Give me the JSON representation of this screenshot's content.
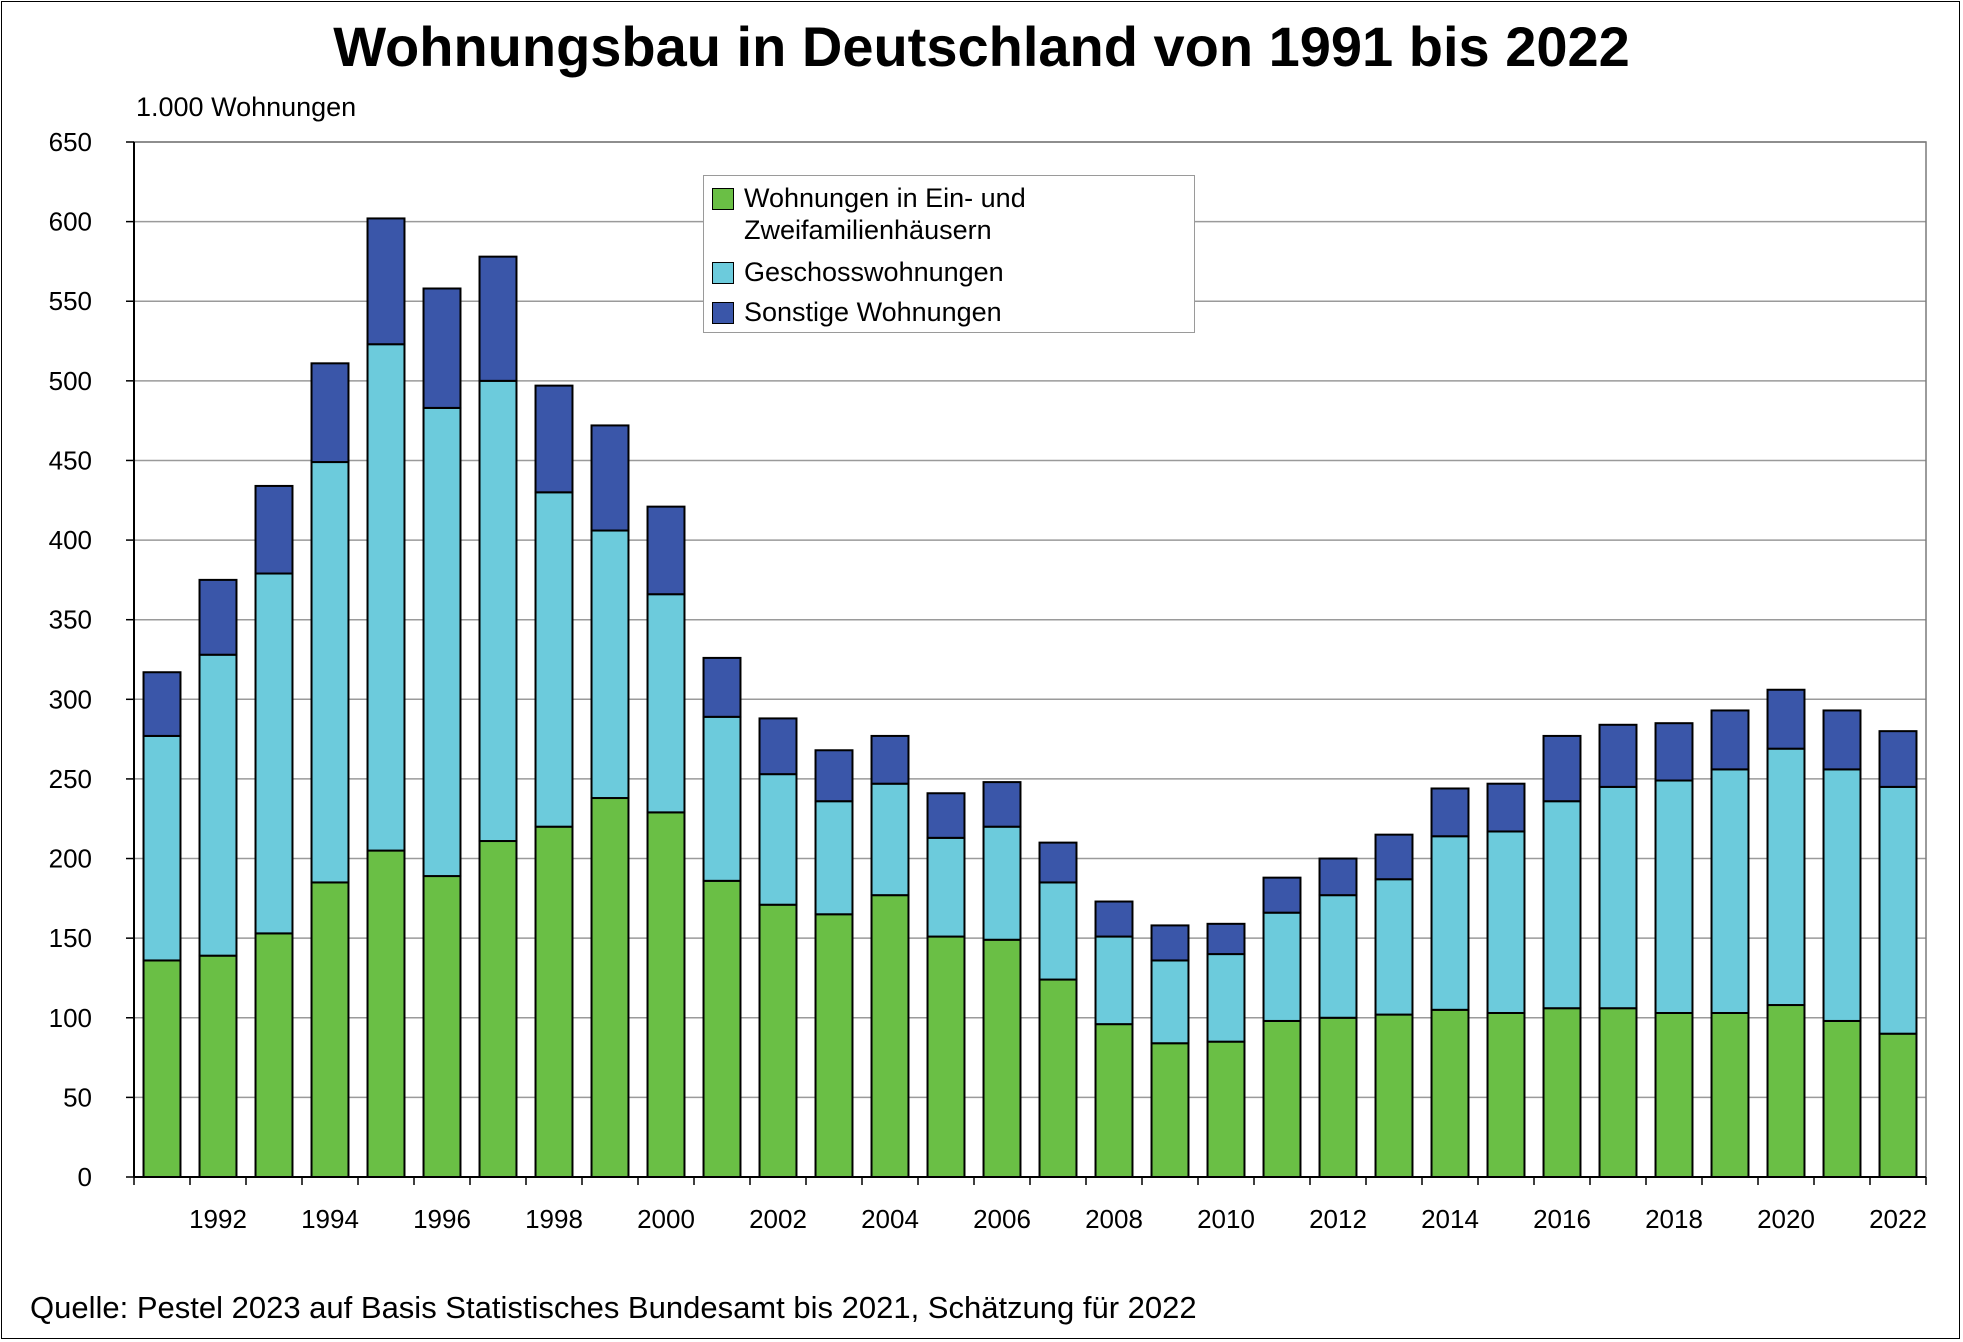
{
  "chart_data": {
    "type": "bar",
    "stacked": true,
    "title": "Wohnungsbau in Deutschland von 1991 bis 2022",
    "ylabel": "1.000 Wohnungen",
    "xlabel": "",
    "ylim": [
      0,
      650
    ],
    "yticks": [
      0,
      50,
      100,
      150,
      200,
      250,
      300,
      350,
      400,
      450,
      500,
      550,
      600,
      650
    ],
    "xtick_labels": [
      "1992",
      "1994",
      "1996",
      "1998",
      "2000",
      "2002",
      "2004",
      "2006",
      "2008",
      "2010",
      "2012",
      "2014",
      "2016",
      "2018",
      "2020",
      "2022"
    ],
    "grid": true,
    "legend_position": "top-center",
    "categories": [
      "1991",
      "1992",
      "1993",
      "1994",
      "1995",
      "1996",
      "1997",
      "1998",
      "1999",
      "2000",
      "2001",
      "2002",
      "2003",
      "2004",
      "2005",
      "2006",
      "2007",
      "2008",
      "2009",
      "2010",
      "2011",
      "2012",
      "2013",
      "2014",
      "2015",
      "2016",
      "2017",
      "2018",
      "2019",
      "2020",
      "2021",
      "2022"
    ],
    "series": [
      {
        "name": "Wohnungen in Ein- und Zweifamilienhäusern",
        "color": "#6abf45",
        "values": [
          136,
          139,
          153,
          185,
          205,
          189,
          211,
          220,
          238,
          229,
          186,
          171,
          165,
          177,
          151,
          149,
          124,
          96,
          84,
          85,
          98,
          100,
          102,
          105,
          103,
          106,
          106,
          103,
          103,
          108,
          98,
          90
        ]
      },
      {
        "name": "Geschosswohnungen",
        "color": "#6ccbdc",
        "values": [
          141,
          189,
          226,
          264,
          318,
          294,
          289,
          210,
          168,
          137,
          103,
          82,
          71,
          70,
          62,
          71,
          61,
          55,
          52,
          55,
          68,
          77,
          85,
          109,
          114,
          130,
          139,
          146,
          153,
          161,
          158,
          155
        ]
      },
      {
        "name": "Sonstige Wohnungen",
        "color": "#3a56a9",
        "values": [
          40,
          47,
          55,
          62,
          79,
          75,
          78,
          67,
          66,
          55,
          37,
          35,
          32,
          30,
          28,
          28,
          25,
          22,
          22,
          19,
          22,
          23,
          28,
          30,
          30,
          41,
          39,
          36,
          37,
          37,
          37,
          35
        ]
      }
    ]
  },
  "source": "Quelle: Pestel 2023 auf Basis Statistisches Bundesamt bis 2021, Schätzung für 2022",
  "legend": {
    "item_1_line_1": "Wohnungen in Ein- und",
    "item_1_line_2": "Zweifamilienhäusern",
    "item_2": "Geschosswohnungen",
    "item_3": "Sonstige Wohnungen"
  }
}
